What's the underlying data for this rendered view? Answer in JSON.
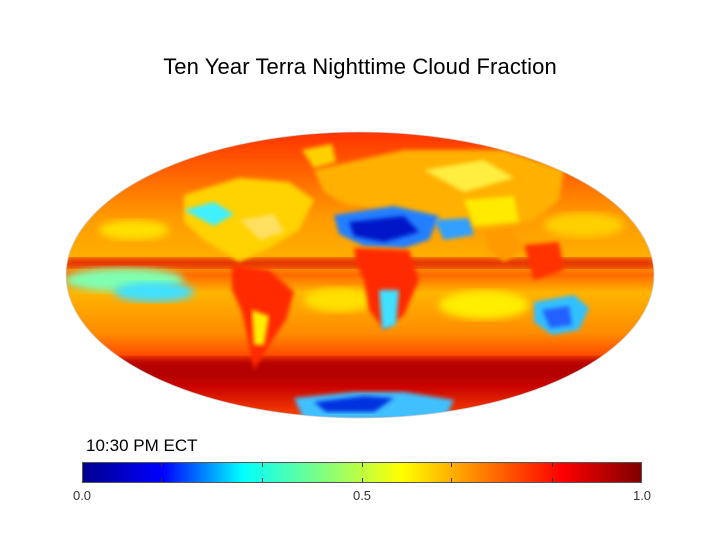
{
  "title": "Ten Year Terra Nighttime Cloud Fraction",
  "ect_label": "10:30 PM ECT",
  "colorbar": {
    "tick_labels": [
      "0.0",
      "0.5",
      "1.0"
    ],
    "min": 0.0,
    "max": 1.0,
    "colormap": "jet",
    "stops": [
      "#00008f",
      "#0000ff",
      "#00ffff",
      "#80ff80",
      "#ffff00",
      "#ff8000",
      "#ff0000",
      "#800000"
    ]
  },
  "colors": {
    "ocean_base": "#ff7a00",
    "high_cloud": "#a80000",
    "low_cloud": "#0020d0",
    "mid_cloud": "#ffe000"
  },
  "map": {
    "projection": "mollweide",
    "variable": "cloud fraction"
  }
}
